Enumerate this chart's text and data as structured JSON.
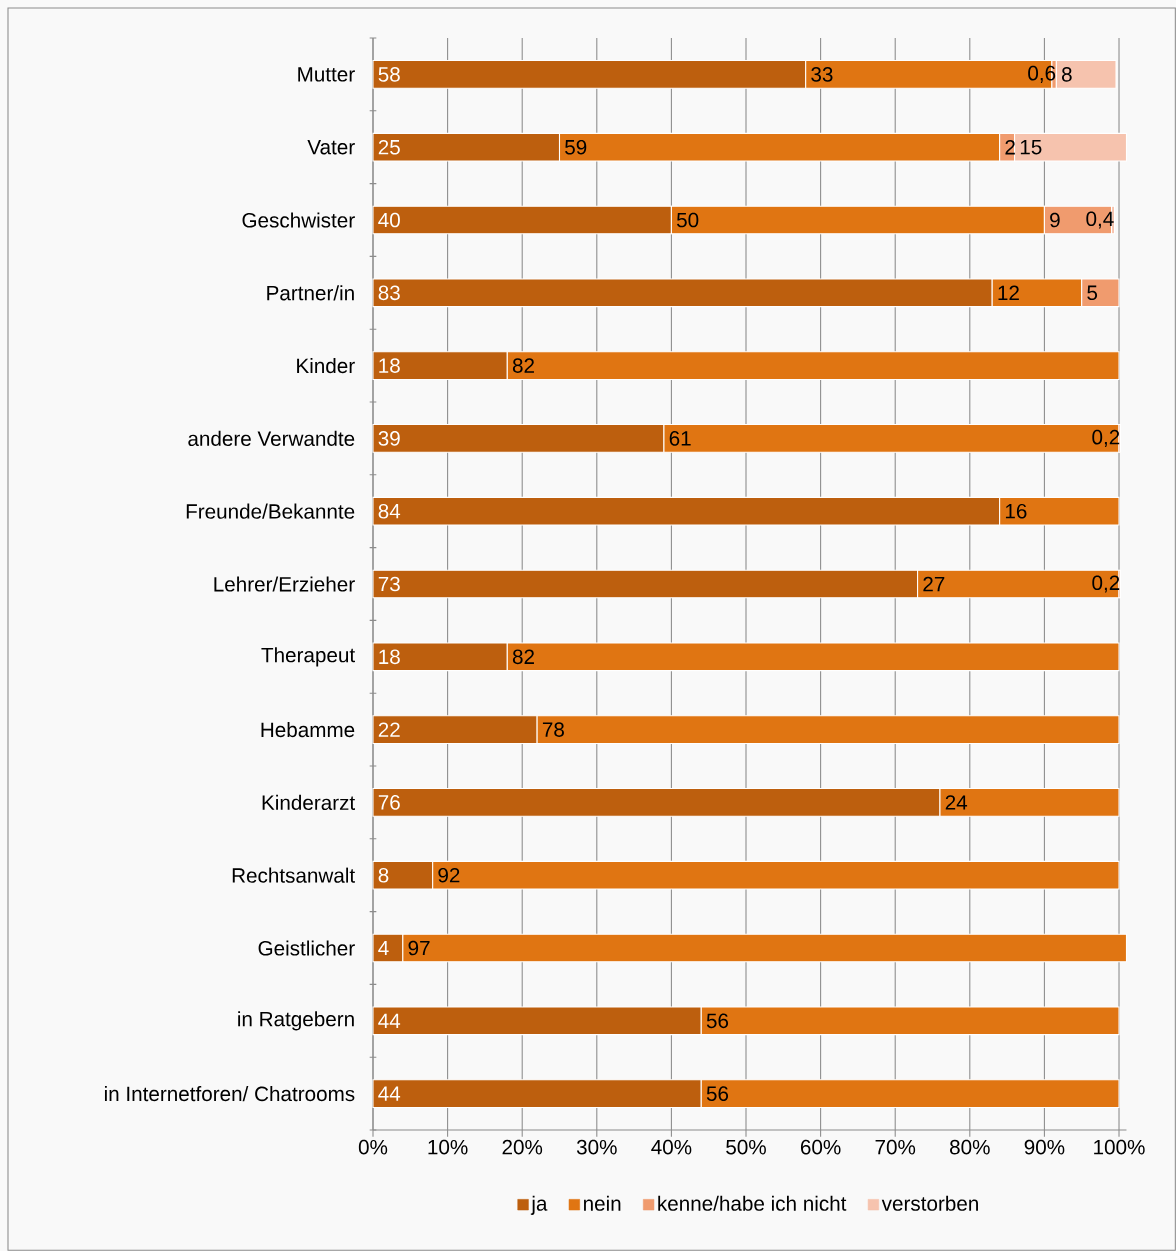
{
  "chart_data": {
    "type": "bar",
    "orientation": "horizontal",
    "stacked": true,
    "categories": [
      "Mutter",
      "Vater",
      "Geschwister",
      "Partner/in",
      "Kinder",
      "andere Verwandte",
      "Freunde/Bekannte",
      "Lehrer/Erzieher",
      "Therapeut",
      "Hebamme",
      "Kinderarzt",
      "Rechtsanwalt",
      "Geistlicher",
      "in Ratgebern",
      "in Internetforen/ Chatrooms"
    ],
    "series": [
      {
        "name": "ja",
        "color": "#bd5f0e",
        "values": [
          58,
          25,
          40,
          83,
          18,
          39,
          84,
          73,
          18,
          22,
          76,
          8,
          4,
          44,
          44
        ],
        "value_labels": [
          "58",
          "25",
          "40",
          "83",
          "18",
          "39",
          "84",
          "73",
          "18",
          "22",
          "76",
          "8",
          "4",
          "44",
          "44"
        ]
      },
      {
        "name": "nein",
        "color": "#e07512",
        "values": [
          33,
          59,
          50,
          12,
          82,
          61,
          16,
          27,
          82,
          78,
          24,
          92,
          97,
          56,
          56
        ],
        "value_labels": [
          "33",
          "59",
          "50",
          "12",
          "82",
          "61",
          "16",
          "27",
          "82",
          "78",
          "24",
          "92",
          "97",
          "56",
          "56"
        ]
      },
      {
        "name": "kenne/habe ich nicht",
        "color": "#f09b6e",
        "values": [
          0.6,
          2,
          9,
          5,
          null,
          0.2,
          null,
          0.2,
          null,
          null,
          null,
          null,
          null,
          null,
          null
        ],
        "value_labels": [
          "0,6",
          "2",
          "9",
          "5",
          null,
          "0,2",
          null,
          "0,2",
          null,
          null,
          null,
          null,
          null,
          null,
          null
        ]
      },
      {
        "name": "verstorben",
        "color": "#f6c3ae",
        "values": [
          8,
          15,
          0.4,
          null,
          null,
          null,
          null,
          null,
          null,
          null,
          null,
          null,
          null,
          null,
          null
        ],
        "value_labels": [
          "8",
          "15",
          "0,4",
          null,
          null,
          null,
          null,
          null,
          null,
          null,
          null,
          null,
          null,
          null,
          null
        ]
      }
    ],
    "xlim": [
      0,
      101
    ],
    "xticks": [
      {
        "value": 0,
        "label": "0%"
      },
      {
        "value": 10,
        "label": "10%"
      },
      {
        "value": 20,
        "label": "20%"
      },
      {
        "value": 30,
        "label": "30%"
      },
      {
        "value": 40,
        "label": "40%"
      },
      {
        "value": 50,
        "label": "50%"
      },
      {
        "value": 60,
        "label": "60%"
      },
      {
        "value": 70,
        "label": "70%"
      },
      {
        "value": 80,
        "label": "80%"
      },
      {
        "value": 90,
        "label": "90%"
      },
      {
        "value": 100,
        "label": "100%"
      }
    ],
    "grid": "x",
    "legend": "bottom"
  }
}
